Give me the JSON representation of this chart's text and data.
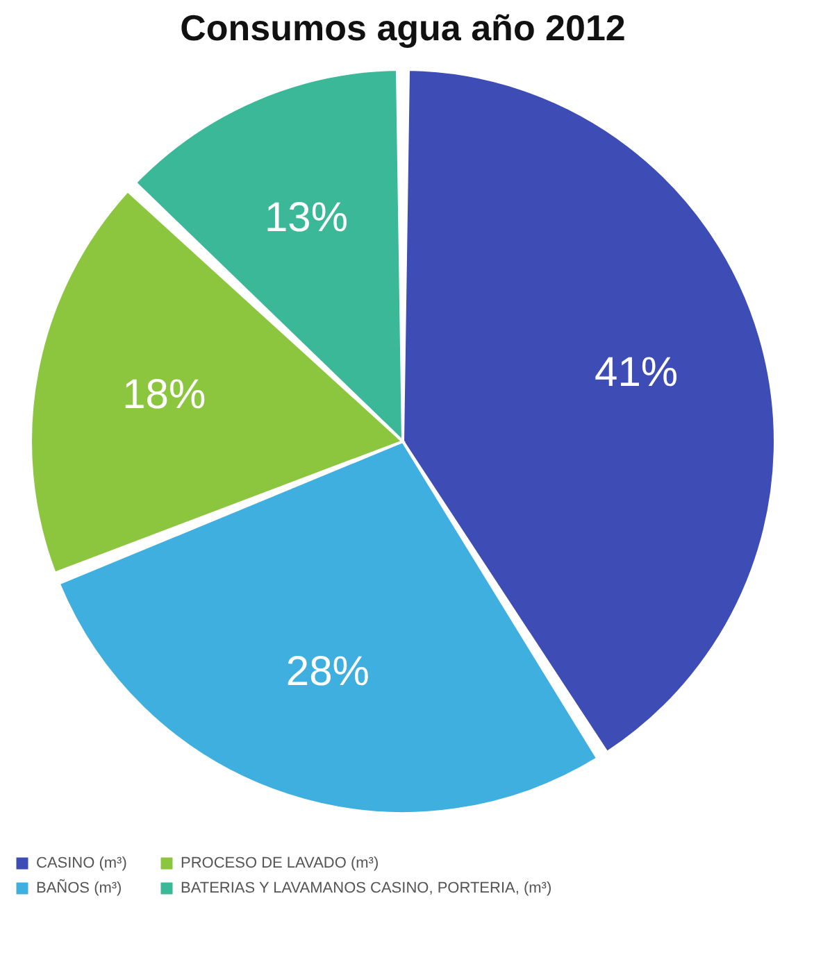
{
  "chart_data": {
    "type": "pie",
    "title": "Consumos agua año 2012",
    "categories": [
      "CASINO (m³)",
      "BAÑOS (m³)",
      "PROCESO DE LAVADO (m³)",
      "BATERIAS Y LAVAMANOS CASINO, PORTERIA, (m³)"
    ],
    "values": [
      41,
      28,
      18,
      13
    ],
    "colors": [
      "#3e4db5",
      "#3fafe0",
      "#8cc63f",
      "#3bb897"
    ],
    "value_labels": [
      "41%",
      "28%",
      "18%",
      "13%"
    ],
    "legend": "bottom"
  }
}
